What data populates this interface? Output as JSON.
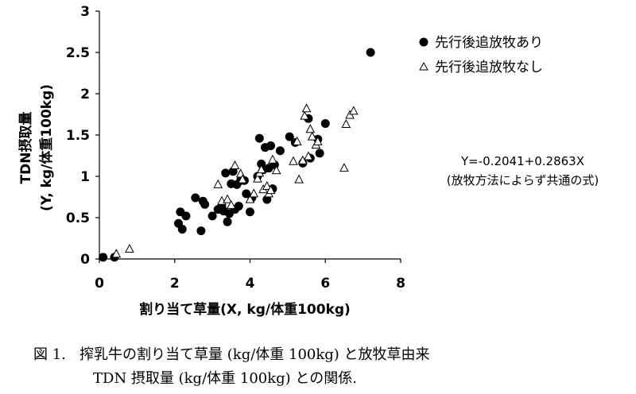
{
  "chart_data": {
    "type": "scatter",
    "xlabel": "割り当て草量(X, kg/体重100kg)",
    "ylabel_line1": "TDN摂取量",
    "ylabel_line2": "(Y, kg/体重100kg)",
    "xlim": [
      0,
      8
    ],
    "ylim": [
      0,
      3
    ],
    "xticks": [
      "0",
      "2",
      "4",
      "6",
      "8"
    ],
    "yticks": [
      "0",
      "0.5",
      "1",
      "1.5",
      "2",
      "2.5",
      "3"
    ],
    "grid": false,
    "legend_position": "top-right",
    "series": [
      {
        "name": "先行後追放牧あり",
        "marker": "filled-circle",
        "points": [
          [
            0.1,
            0.02
          ],
          [
            0.4,
            0.02
          ],
          [
            2.1,
            0.43
          ],
          [
            2.15,
            0.57
          ],
          [
            2.2,
            0.36
          ],
          [
            2.3,
            0.52
          ],
          [
            2.55,
            0.74
          ],
          [
            2.7,
            0.34
          ],
          [
            2.75,
            0.7
          ],
          [
            2.8,
            0.66
          ],
          [
            3.0,
            0.52
          ],
          [
            3.15,
            0.6
          ],
          [
            3.25,
            0.63
          ],
          [
            3.3,
            0.58
          ],
          [
            3.35,
            1.04
          ],
          [
            3.4,
            0.45
          ],
          [
            3.45,
            0.55
          ],
          [
            3.5,
            0.91
          ],
          [
            3.55,
            1.06
          ],
          [
            3.6,
            0.6
          ],
          [
            3.65,
            0.9
          ],
          [
            3.7,
            0.64
          ],
          [
            3.75,
            0.95
          ],
          [
            3.85,
            0.95
          ],
          [
            3.9,
            0.79
          ],
          [
            4.0,
            0.57
          ],
          [
            4.05,
            0.74
          ],
          [
            4.2,
            1.0
          ],
          [
            4.25,
            1.46
          ],
          [
            4.3,
            1.15
          ],
          [
            4.35,
            1.08
          ],
          [
            4.4,
            1.35
          ],
          [
            4.45,
            0.72
          ],
          [
            4.5,
            1.1
          ],
          [
            4.55,
            1.37
          ],
          [
            4.6,
            0.85
          ],
          [
            4.65,
            1.14
          ],
          [
            4.8,
            1.31
          ],
          [
            5.05,
            1.48
          ],
          [
            5.2,
            1.41
          ],
          [
            5.4,
            1.16
          ],
          [
            5.55,
            1.7
          ],
          [
            5.6,
            1.22
          ],
          [
            5.8,
            1.45
          ],
          [
            5.85,
            1.28
          ],
          [
            6.0,
            1.64
          ],
          [
            7.2,
            2.5
          ]
        ]
      },
      {
        "name": "先行後追放牧なし",
        "marker": "open-triangle",
        "points": [
          [
            0.45,
            0.06
          ],
          [
            0.8,
            0.12
          ],
          [
            3.15,
            0.9
          ],
          [
            3.25,
            0.7
          ],
          [
            3.4,
            0.72
          ],
          [
            3.5,
            0.65
          ],
          [
            3.6,
            1.13
          ],
          [
            3.75,
            1.03
          ],
          [
            3.8,
            0.96
          ],
          [
            4.0,
            0.72
          ],
          [
            4.1,
            0.79
          ],
          [
            4.2,
            0.97
          ],
          [
            4.25,
            1.04
          ],
          [
            4.3,
            1.08
          ],
          [
            4.35,
            0.84
          ],
          [
            4.45,
            0.88
          ],
          [
            4.5,
            0.79
          ],
          [
            4.55,
            0.83
          ],
          [
            4.6,
            1.2
          ],
          [
            4.7,
            1.07
          ],
          [
            5.15,
            1.18
          ],
          [
            5.25,
            1.42
          ],
          [
            5.3,
            0.96
          ],
          [
            5.4,
            1.19
          ],
          [
            5.45,
            1.73
          ],
          [
            5.5,
            1.82
          ],
          [
            5.55,
            1.24
          ],
          [
            5.6,
            1.57
          ],
          [
            5.65,
            1.48
          ],
          [
            5.75,
            1.38
          ],
          [
            5.8,
            1.42
          ],
          [
            6.5,
            1.1
          ],
          [
            6.55,
            1.63
          ],
          [
            6.65,
            1.74
          ],
          [
            6.75,
            1.79
          ]
        ]
      }
    ]
  },
  "equation": {
    "line1": "Y=-0.2041+0.2863X",
    "line2": "(放牧方法によらず共通の式)"
  },
  "caption": {
    "line1": "図 1.   搾乳牛の割り当て草量 (kg/体重 100kg) と放牧草由来",
    "line2": "TDN 摂取量 (kg/体重 100kg) との関係."
  }
}
